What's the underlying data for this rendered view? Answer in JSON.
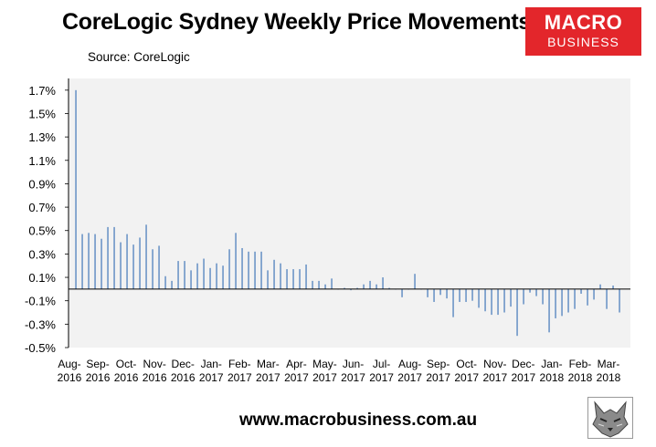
{
  "title": "CoreLogic Sydney Weekly Price Movements",
  "subtitle": "Source: CoreLogic",
  "logo": {
    "line1": "MACRO",
    "line2": "BUSINESS",
    "color": "#e3262b"
  },
  "footer": "www.macrobusiness.com.au",
  "wolf_icon": "wolf-logo-icon",
  "colors": {
    "bar": "#4f81bd",
    "plot_bg": "#f2f2f2",
    "axis": "#000000"
  },
  "chart_data": {
    "type": "bar",
    "title": "CoreLogic Sydney Weekly Price Movements",
    "xlabel": "",
    "ylabel": "",
    "ylim": [
      -0.5,
      1.8
    ],
    "grid": false,
    "y_ticks": [
      "1.7%",
      "1.5%",
      "1.3%",
      "1.1%",
      "0.9%",
      "0.7%",
      "0.5%",
      "0.3%",
      "0.1%",
      "-0.1%",
      "-0.3%",
      "-0.5%"
    ],
    "y_tick_values": [
      1.7,
      1.5,
      1.3,
      1.1,
      0.9,
      0.7,
      0.5,
      0.3,
      0.1,
      -0.1,
      -0.3,
      -0.5
    ],
    "x_ticks": [
      [
        "Aug-",
        "2016"
      ],
      [
        "Sep-",
        "2016"
      ],
      [
        "Oct-",
        "2016"
      ],
      [
        "Nov-",
        "2016"
      ],
      [
        "Dec-",
        "2016"
      ],
      [
        "Jan-",
        "2017"
      ],
      [
        "Feb-",
        "2017"
      ],
      [
        "Mar-",
        "2017"
      ],
      [
        "Apr-",
        "2017"
      ],
      [
        "May-",
        "2017"
      ],
      [
        "Jun-",
        "2017"
      ],
      [
        "Jul-",
        "2017"
      ],
      [
        "Aug-",
        "2017"
      ],
      [
        "Sep-",
        "2017"
      ],
      [
        "Oct-",
        "2017"
      ],
      [
        "Nov-",
        "2017"
      ],
      [
        "Dec-",
        "2017"
      ],
      [
        "Jan-",
        "2018"
      ],
      [
        "Feb-",
        "2018"
      ],
      [
        "Mar-",
        "2018"
      ]
    ],
    "values": [
      1.7,
      0.47,
      0.48,
      0.47,
      0.43,
      0.53,
      0.53,
      0.4,
      0.47,
      0.38,
      0.44,
      0.55,
      0.34,
      0.37,
      0.11,
      0.07,
      0.24,
      0.24,
      0.16,
      0.22,
      0.26,
      0.18,
      0.22,
      0.2,
      0.34,
      0.48,
      0.35,
      0.32,
      0.32,
      0.32,
      0.16,
      0.25,
      0.22,
      0.17,
      0.17,
      0.17,
      0.21,
      0.07,
      0.07,
      0.04,
      0.09,
      0.0,
      0.01,
      -0.01,
      0.01,
      0.04,
      0.07,
      0.04,
      0.1,
      0.01,
      0.0,
      -0.07,
      0.0,
      0.13,
      0.0,
      -0.07,
      -0.11,
      -0.05,
      -0.08,
      -0.24,
      -0.11,
      -0.11,
      -0.1,
      -0.16,
      -0.19,
      -0.22,
      -0.22,
      -0.2,
      -0.15,
      -0.4,
      -0.13,
      -0.03,
      -0.06,
      -0.13,
      -0.37,
      -0.25,
      -0.23,
      -0.2,
      -0.17,
      -0.04,
      -0.14,
      -0.09,
      0.04,
      -0.17,
      0.03,
      -0.2
    ]
  }
}
